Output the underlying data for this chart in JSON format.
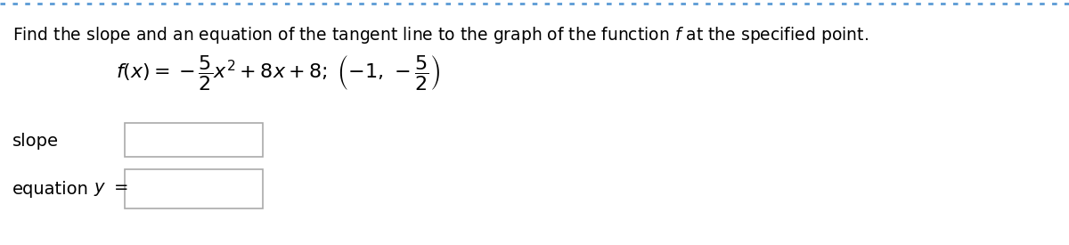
{
  "title": "Find the slope and an equation of the tangent line to the graph of the function $f$ at the specified point.",
  "slope_label": "slope",
  "equation_label": "equation",
  "background_color": "#ffffff",
  "border_color": "#5b9bd5",
  "box_edge_color": "#aaaaaa",
  "text_color": "#000000",
  "title_fontsize": 13.5,
  "label_fontsize": 14,
  "func_fontsize": 16
}
